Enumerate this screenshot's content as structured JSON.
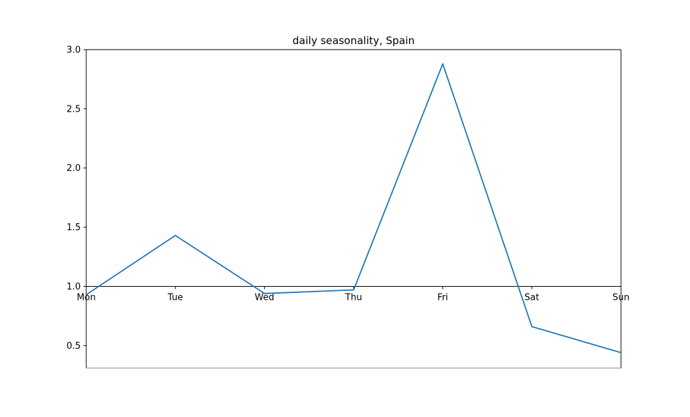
{
  "chart_data": {
    "type": "line",
    "title": "daily seasonality, Spain",
    "xlabel": "",
    "ylabel": "",
    "categories": [
      "Mon",
      "Tue",
      "Wed",
      "Thu",
      "Fri",
      "Sat",
      "Sun"
    ],
    "series": [
      {
        "values": [
          0.93,
          1.43,
          0.94,
          0.97,
          2.88,
          0.66,
          0.44
        ]
      }
    ],
    "ylim": [
      0.31,
      3.0
    ],
    "yticks": [
      0.5,
      1.0,
      1.5,
      2.0,
      2.5,
      3.0
    ],
    "ytick_labels": [
      "0.5",
      "1.0",
      "1.5",
      "2.0",
      "2.5",
      "3.0"
    ],
    "x_axis_at": 1.0,
    "grid": false,
    "line_color": "#1f77b4"
  }
}
